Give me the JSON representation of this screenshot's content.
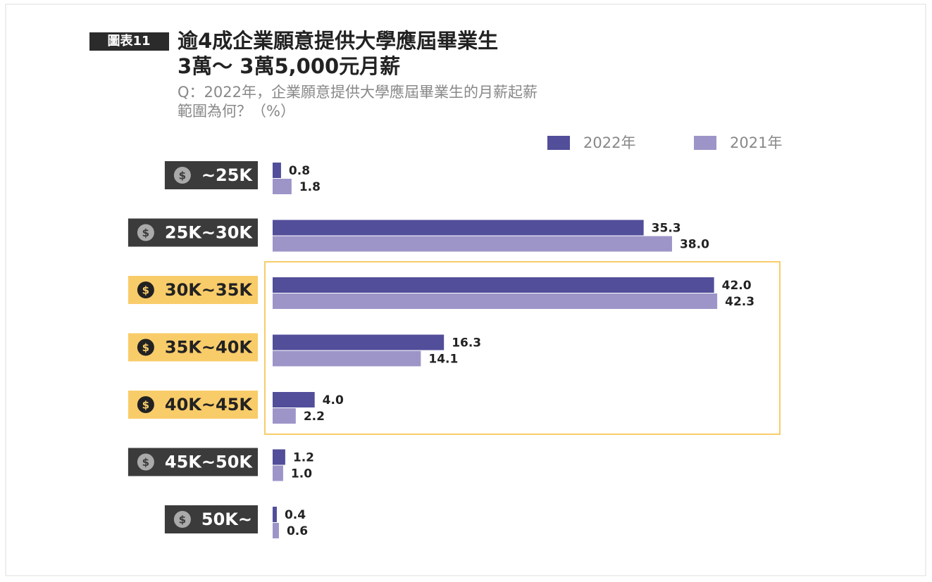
{
  "badge": "圖表11",
  "chart_data": {
    "type": "hbar",
    "title": [
      "逾4成企業願意提供大學應屆畢業生",
      "3萬～ 3萬5,000元月薪"
    ],
    "subtitle": [
      "Q：2022年，企業願意提供大學應屆畢業生的月薪起薪",
      "範圍為何？（%）"
    ],
    "categories": [
      "~25K",
      "25K~30K",
      "30K~35K",
      "35K~40K",
      "40K~45K",
      "45K~50K",
      "50K~"
    ],
    "series": [
      {
        "name": "2022年",
        "color": "#524e9a",
        "values": [
          0.8,
          35.3,
          42.0,
          16.3,
          4.0,
          1.2,
          0.4
        ],
        "value_labels": [
          "0.8",
          "35.3",
          "42.0",
          "16.3",
          "4.0",
          "1.2",
          "0.4"
        ]
      },
      {
        "name": "2021年",
        "color": "#9d95c8",
        "values": [
          1.8,
          38.0,
          42.3,
          14.1,
          2.2,
          1.0,
          0.6
        ],
        "value_labels": [
          "1.8",
          "38.0",
          "42.3",
          "14.1",
          "2.2",
          "1.0",
          "0.6"
        ]
      }
    ],
    "highlighted": [
      2,
      3,
      4
    ],
    "highlight_color": "#f9cc6a",
    "label_color": "#3b3b3b"
  }
}
